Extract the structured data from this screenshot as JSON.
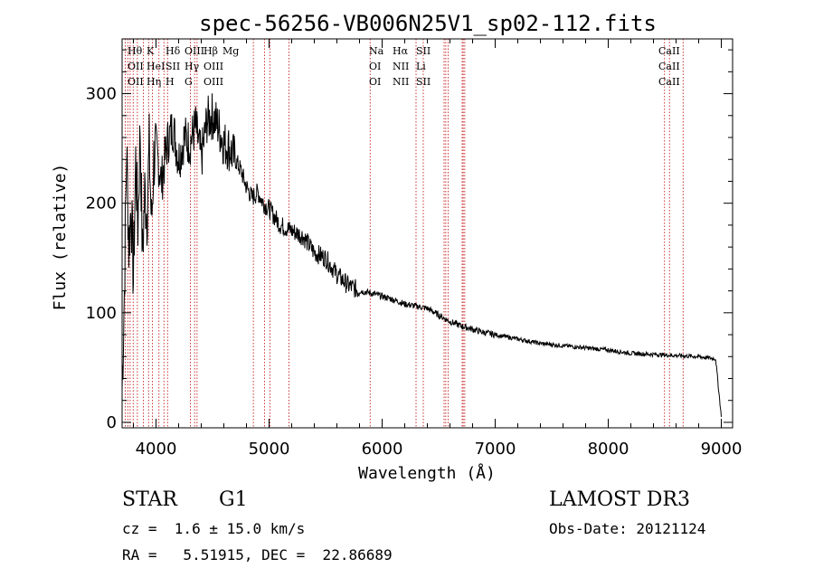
{
  "chart_data": {
    "type": "line",
    "title": "spec-56256-VB006N25V1_sp02-112.fits",
    "xlabel": "Wavelength (Å)",
    "ylabel": "Flux (relative)",
    "xlim": [
      3700,
      9100
    ],
    "ylim": [
      -5,
      350
    ],
    "x_ticks": [
      4000,
      5000,
      6000,
      7000,
      8000,
      9000
    ],
    "x_tick_labels": [
      "4000",
      "5000",
      "6000",
      "7000",
      "8000",
      "9000"
    ],
    "y_ticks": [
      0,
      100,
      200,
      300
    ],
    "y_tick_labels": [
      "0",
      "100",
      "200",
      "300"
    ],
    "grid": false,
    "series": [
      {
        "name": "flux",
        "x": [
          3700,
          3720,
          3740,
          3760,
          3780,
          3800,
          3820,
          3840,
          3860,
          3880,
          3900,
          3920,
          3940,
          3960,
          3980,
          4000,
          4050,
          4100,
          4150,
          4200,
          4250,
          4300,
          4350,
          4400,
          4450,
          4500,
          4550,
          4600,
          4650,
          4700,
          4750,
          4800,
          4850,
          4900,
          4950,
          5000,
          5100,
          5200,
          5300,
          5400,
          5500,
          5600,
          5700,
          5800,
          5900,
          6000,
          6100,
          6200,
          6300,
          6400,
          6500,
          6600,
          6700,
          6800,
          6900,
          7000,
          7200,
          7400,
          7600,
          7800,
          8000,
          8200,
          8400,
          8600,
          8800,
          8950,
          9000
        ],
        "y": [
          30,
          120,
          250,
          160,
          200,
          130,
          240,
          180,
          270,
          150,
          210,
          190,
          250,
          180,
          240,
          250,
          220,
          255,
          270,
          240,
          260,
          255,
          270,
          240,
          275,
          280,
          270,
          255,
          250,
          240,
          230,
          215,
          205,
          210,
          200,
          195,
          180,
          175,
          170,
          155,
          150,
          135,
          125,
          120,
          118,
          115,
          112,
          108,
          106,
          104,
          98,
          92,
          88,
          85,
          82,
          80,
          76,
          72,
          70,
          68,
          66,
          63,
          62,
          61,
          60,
          58,
          5
        ]
      }
    ],
    "lines_left": [
      "Hθ",
      "OII",
      "OII",
      "K",
      "HeI",
      "Hη",
      "Hδ",
      "SII",
      "H",
      "OIII",
      "Hγ",
      "G",
      "Hβ",
      "OIII",
      "OIII",
      "Mg"
    ],
    "lines_mid": [
      "Na",
      "OI",
      "OI",
      "Hα",
      "NII",
      "NII",
      "SII",
      "Li",
      "SII"
    ],
    "lines_right": [
      "CaII",
      "CaII",
      "CaII"
    ],
    "line_positions": [
      3727,
      3750,
      3771,
      3798,
      3835,
      3889,
      3934,
      3969,
      4026,
      4070,
      4102,
      4304,
      4341,
      4363,
      4861,
      4959,
      5007,
      5175,
      5894,
      6300,
      6364,
      6548,
      6563,
      6583,
      6708,
      6717,
      6731,
      8498,
      8542,
      8662
    ]
  },
  "info": {
    "object_type": "STAR",
    "subclass": "G1",
    "survey": "LAMOST DR3",
    "redshift": "cz =  1.6 ± 15.0 km/s",
    "obs_date": "Obs-Date: 20121124",
    "coords": "RA =   5.51915, DEC =  22.86689"
  }
}
